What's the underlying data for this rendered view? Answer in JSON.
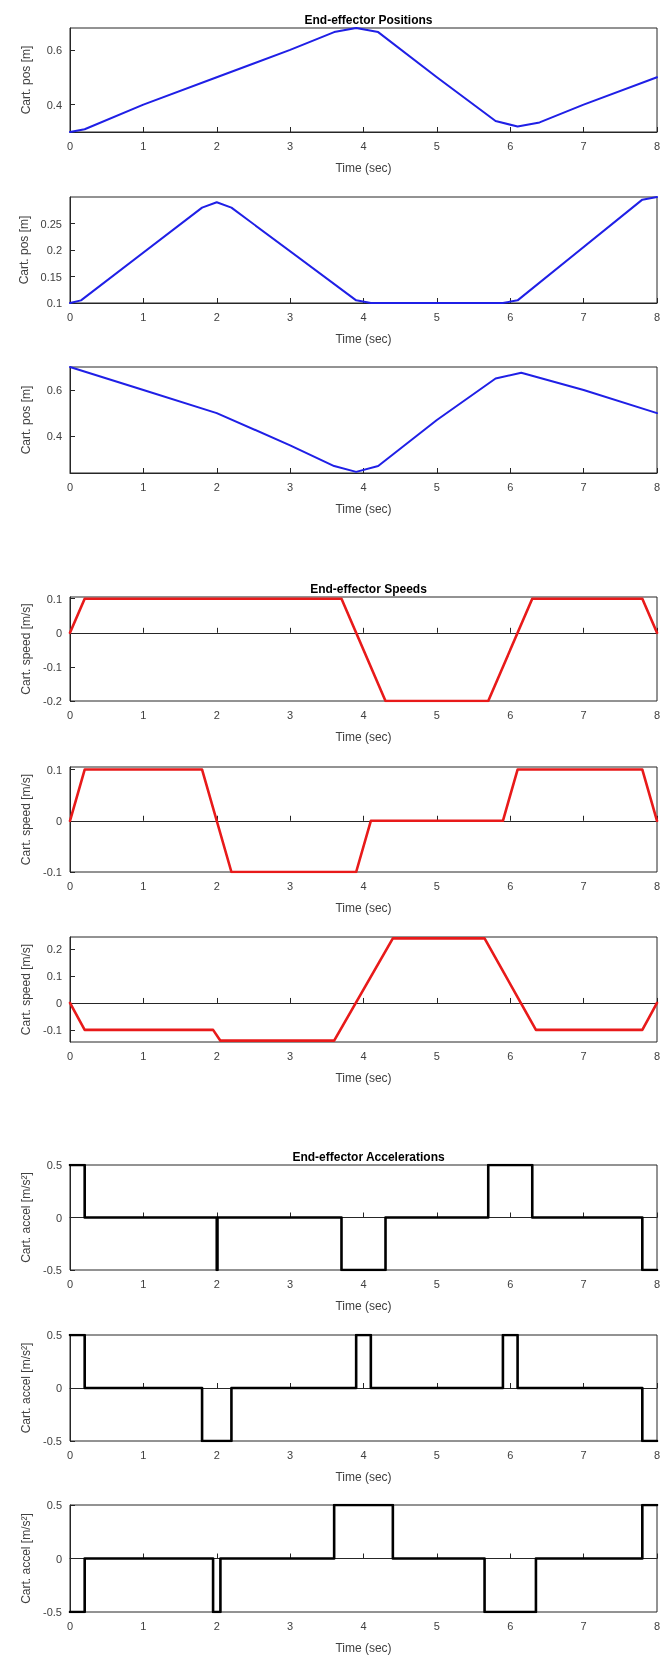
{
  "chart_data": [
    {
      "type": "line",
      "title": "End-effector Positions",
      "xlabel": "Time (sec)",
      "ylabel": "Cart. pos [m]",
      "xlim": [
        0,
        8
      ],
      "xticks": [
        0,
        1,
        2,
        3,
        4,
        5,
        6,
        7,
        8
      ],
      "ylim": [
        0.3,
        0.68
      ],
      "yticks": [
        0.4,
        0.6
      ],
      "marker": "none",
      "line_style": "solid",
      "x": [
        0,
        0.2,
        1,
        2,
        3,
        3.6,
        3.9,
        4.2,
        5,
        5.8,
        6.1,
        6.4,
        7,
        8
      ],
      "series": [
        {
          "color": "#1f1fe6",
          "values": [
            0.3,
            0.31,
            0.4,
            0.5,
            0.6,
            0.665,
            0.68,
            0.665,
            0.5,
            0.34,
            0.32,
            0.335,
            0.4,
            0.5
          ]
        }
      ]
    },
    {
      "type": "line",
      "xlabel": "Time (sec)",
      "ylabel": "Cart. pos [m]",
      "xlim": [
        0,
        8
      ],
      "xticks": [
        0,
        1,
        2,
        3,
        4,
        5,
        6,
        7,
        8
      ],
      "ylim": [
        0.1,
        0.3
      ],
      "yticks": [
        0.1,
        0.15,
        0.2,
        0.25
      ],
      "marker": "none",
      "line_style": "solid",
      "x": [
        0,
        0.15,
        1.8,
        2,
        2.2,
        3.9,
        4.1,
        5.9,
        6.1,
        7.8,
        8
      ],
      "series": [
        {
          "color": "#1f1fe6",
          "values": [
            0.1,
            0.105,
            0.28,
            0.29,
            0.28,
            0.105,
            0.1,
            0.1,
            0.105,
            0.295,
            0.3
          ]
        }
      ]
    },
    {
      "type": "line",
      "xlabel": "Time (sec)",
      "ylabel": "Cart. pos [m]",
      "xlim": [
        0,
        8
      ],
      "xticks": [
        0,
        1,
        2,
        3,
        4,
        5,
        6,
        7,
        8
      ],
      "ylim": [
        0.24,
        0.7
      ],
      "yticks": [
        0.4,
        0.6
      ],
      "marker": "none",
      "line_style": "solid",
      "x": [
        0,
        1,
        2,
        3,
        3.6,
        3.9,
        4.2,
        5,
        5.8,
        6.15,
        7,
        8
      ],
      "series": [
        {
          "color": "#1f1fe6",
          "values": [
            0.7,
            0.6,
            0.5,
            0.36,
            0.27,
            0.245,
            0.27,
            0.47,
            0.65,
            0.675,
            0.6,
            0.5
          ]
        }
      ]
    },
    {
      "type": "line",
      "title": "End-effector Speeds",
      "xlabel": "Time (sec)",
      "ylabel": "Cart. speed [m/s]",
      "xlim": [
        0,
        8
      ],
      "xticks": [
        0,
        1,
        2,
        3,
        4,
        5,
        6,
        7,
        8
      ],
      "ylim": [
        -0.2,
        0.105
      ],
      "yticks": [
        -0.2,
        -0.1,
        0,
        0.1
      ],
      "marker": "none",
      "line_style": "solid",
      "x": [
        0,
        0.2,
        2,
        2,
        3.7,
        4.3,
        5.7,
        6.3,
        7.8,
        8
      ],
      "series": [
        {
          "color": "#e81a1a",
          "values": [
            0,
            0.1,
            0.1,
            0.1,
            0.1,
            -0.2,
            -0.2,
            0.1,
            0.1,
            0
          ]
        }
      ]
    },
    {
      "type": "line",
      "xlabel": "Time (sec)",
      "ylabel": "Cart. speed [m/s]",
      "xlim": [
        0,
        8
      ],
      "xticks": [
        0,
        1,
        2,
        3,
        4,
        5,
        6,
        7,
        8
      ],
      "ylim": [
        -0.1,
        0.105
      ],
      "yticks": [
        -0.1,
        0,
        0.1
      ],
      "marker": "none",
      "line_style": "solid",
      "x": [
        0,
        0.2,
        1.8,
        2.2,
        3.9,
        4.1,
        5.9,
        6.1,
        7.8,
        8
      ],
      "series": [
        {
          "color": "#e81a1a",
          "values": [
            0,
            0.1,
            0.1,
            -0.1,
            -0.1,
            0,
            0,
            0.1,
            0.1,
            0
          ]
        }
      ]
    },
    {
      "type": "line",
      "xlabel": "Time (sec)",
      "ylabel": "Cart. speed [m/s]",
      "xlim": [
        0,
        8
      ],
      "xticks": [
        0,
        1,
        2,
        3,
        4,
        5,
        6,
        7,
        8
      ],
      "ylim": [
        -0.145,
        0.245
      ],
      "yticks": [
        -0.1,
        0,
        0.1,
        0.2
      ],
      "marker": "none",
      "line_style": "solid",
      "x": [
        0,
        0.2,
        1.95,
        2.05,
        3.6,
        4.4,
        5.65,
        6.35,
        7.8,
        8
      ],
      "series": [
        {
          "color": "#e81a1a",
          "values": [
            0,
            -0.1,
            -0.1,
            -0.14,
            -0.14,
            0.24,
            0.24,
            -0.1,
            -0.1,
            0
          ]
        }
      ]
    },
    {
      "type": "line",
      "title": "End-effector Accelerations",
      "xlabel": "Time (sec)",
      "ylabel": "Cart. accel [m/s²]",
      "xlim": [
        0,
        8
      ],
      "xticks": [
        0,
        1,
        2,
        3,
        4,
        5,
        6,
        7,
        8
      ],
      "ylim": [
        -0.5,
        0.5
      ],
      "yticks": [
        -0.5,
        0,
        0.5
      ],
      "marker": "none",
      "line_style": "solid",
      "x": [
        0,
        0.2,
        0.2,
        2,
        2,
        2.01,
        2.01,
        3.7,
        3.7,
        4.3,
        4.3,
        5.7,
        5.7,
        6.3,
        6.3,
        7.8,
        7.8,
        8
      ],
      "series": [
        {
          "color": "#000000",
          "values": [
            0.5,
            0.5,
            0,
            0,
            -0.5,
            -0.5,
            0,
            0,
            -0.5,
            -0.5,
            0,
            0,
            0.5,
            0.5,
            0,
            0,
            -0.5,
            -0.5
          ]
        }
      ]
    },
    {
      "type": "line",
      "xlabel": "Time (sec)",
      "ylabel": "Cart. accel [m/s²]",
      "xlim": [
        0,
        8
      ],
      "xticks": [
        0,
        1,
        2,
        3,
        4,
        5,
        6,
        7,
        8
      ],
      "ylim": [
        -0.5,
        0.5
      ],
      "yticks": [
        -0.5,
        0,
        0.5
      ],
      "marker": "none",
      "line_style": "solid",
      "x": [
        0,
        0.2,
        0.2,
        1.8,
        1.8,
        2.2,
        2.2,
        3.9,
        3.9,
        4.1,
        4.1,
        5.9,
        5.9,
        6.1,
        6.1,
        7.8,
        7.8,
        8
      ],
      "series": [
        {
          "color": "#000000",
          "values": [
            0.5,
            0.5,
            0,
            0,
            -0.5,
            -0.5,
            0,
            0,
            0.5,
            0.5,
            0,
            0,
            0.5,
            0.5,
            0,
            0,
            -0.5,
            -0.5
          ]
        }
      ]
    },
    {
      "type": "line",
      "xlabel": "Time (sec)",
      "ylabel": "Cart. accel [m/s²]",
      "xlim": [
        0,
        8
      ],
      "xticks": [
        0,
        1,
        2,
        3,
        4,
        5,
        6,
        7,
        8
      ],
      "ylim": [
        -0.5,
        0.5
      ],
      "yticks": [
        -0.5,
        0,
        0.5
      ],
      "marker": "none",
      "line_style": "solid",
      "x": [
        0,
        0.2,
        0.2,
        1.95,
        1.95,
        2.05,
        2.05,
        3.6,
        3.6,
        4.4,
        4.4,
        5.65,
        5.65,
        6.35,
        6.35,
        7.8,
        7.8,
        8
      ],
      "series": [
        {
          "color": "#000000",
          "values": [
            -0.5,
            -0.5,
            0,
            0,
            -0.5,
            -0.5,
            0,
            0,
            0.5,
            0.5,
            0,
            0,
            -0.5,
            -0.5,
            0,
            0,
            0.5,
            0.5
          ]
        }
      ]
    }
  ]
}
